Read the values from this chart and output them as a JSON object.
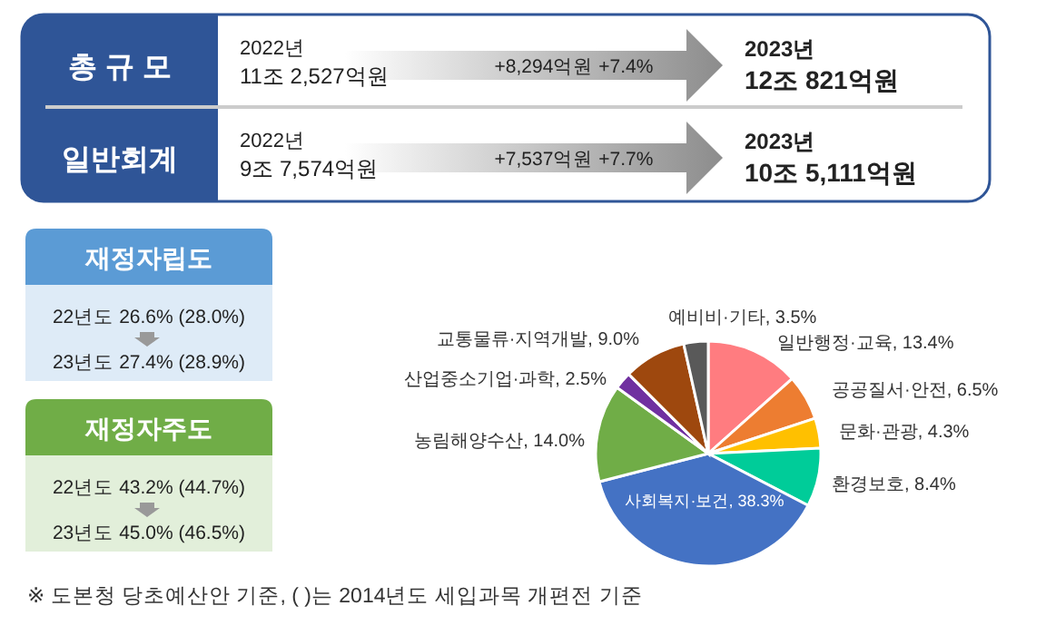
{
  "chart_data": [
    {
      "type": "other",
      "annotations": [
        "총 규 모",
        "2022년",
        "11조 2,527억원",
        "+8,294억원 +7.4%",
        "2023년",
        "12조 821억원",
        "일반회계",
        "2022년",
        "9조 7,574억원",
        "+7,537억원 +7.7%",
        "2023년",
        "10조 5,111억원"
      ]
    },
    {
      "type": "other",
      "annotations": [
        "재정자립도",
        "22년도 26.6% (28.0%)",
        "23년도 27.4% (28.9%)",
        "재정자주도",
        "22년도 43.2% (44.7%)",
        "23년도 45.0% (46.5%)"
      ]
    },
    {
      "type": "pie",
      "categories": [
        "일반행정·교육, 13.4%",
        "공공질서·안전, 6.5%",
        "문화·관광, 4.3%",
        "환경보호, 8.4%",
        "사회복지·보건, 38.3%",
        "농림해양수산, 14.0%",
        "산업중소기업·과학, 2.5%",
        "교통물류·지역개발, 9.0%",
        "예비비·기타, 3.5%"
      ],
      "values": [
        13.4,
        6.5,
        4.3,
        8.4,
        38.3,
        14.0,
        2.5,
        9.0,
        3.5
      ],
      "colors": [
        "#ff7c80",
        "#ed7d31",
        "#ffc000",
        "#00cc99",
        "#4472c4",
        "#70ad47",
        "#7030a0",
        "#9e480e",
        "#595959"
      ],
      "annotations": [
        "※ 도본청 당초예산안 기준, ( )는 2014년도 세입과목 개편전 기준"
      ]
    }
  ]
}
